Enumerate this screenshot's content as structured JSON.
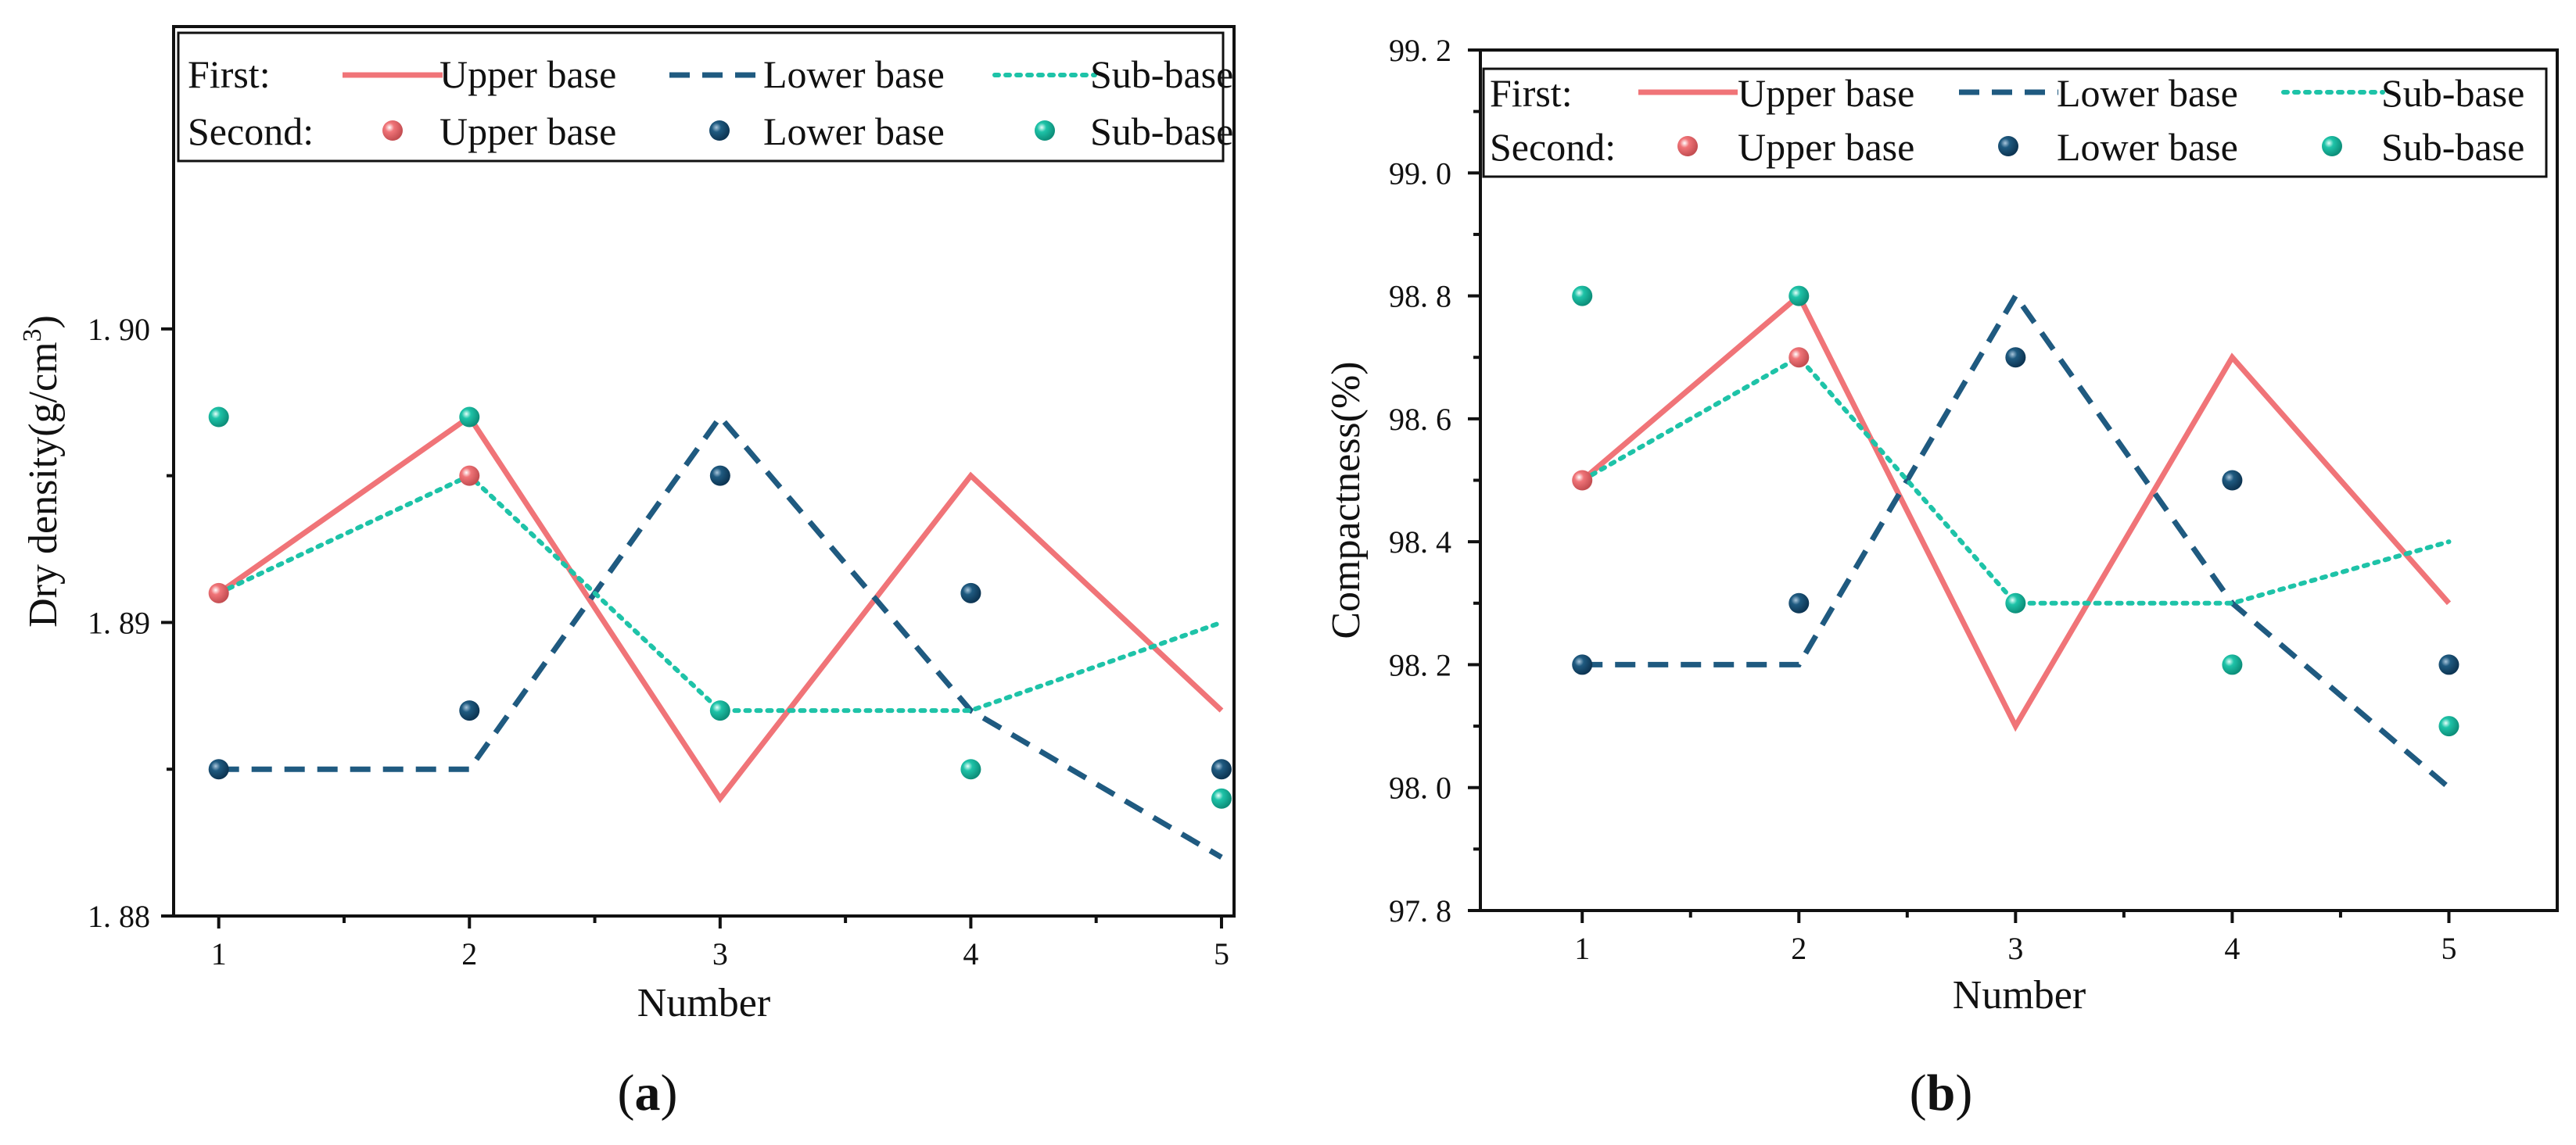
{
  "colors": {
    "upper": "#f07478",
    "lower": "#1f5a80",
    "sub": "#1ec3a8",
    "axis": "#111111"
  },
  "legend": {
    "first_label": "First:",
    "second_label": "Second:",
    "series_names": [
      "Upper base",
      "Lower base",
      "Sub-base"
    ]
  },
  "chart_data": [
    {
      "type": "line",
      "panel_label": "(a)",
      "panel_letter": "a",
      "xlabel": "Number",
      "ylabel": "Dry density(g/cm",
      "ylabel_sup": "3",
      "ylabel_close": ")",
      "x": [
        1,
        2,
        3,
        4,
        5
      ],
      "xlim": [
        0.82,
        5.05
      ],
      "ylim": [
        1.88,
        1.9103
      ],
      "xticks": [
        1,
        2,
        3,
        4,
        5
      ],
      "xtick_labels": [
        "1",
        "2",
        "3",
        "4",
        "5"
      ],
      "yticks": [
        1.88,
        1.89,
        1.9
      ],
      "ytick_labels": [
        "1. 88",
        "1. 89",
        "1. 90"
      ],
      "yminor": [
        1.885,
        1.895
      ],
      "series": [
        {
          "name": "Upper base",
          "key": "upper",
          "group": "First",
          "style": "solid",
          "values": [
            1.891,
            1.897,
            1.884,
            1.895,
            1.887
          ]
        },
        {
          "name": "Lower base",
          "key": "lower",
          "group": "First",
          "style": "dashed",
          "values": [
            1.885,
            1.885,
            1.897,
            1.887,
            1.882
          ]
        },
        {
          "name": "Sub-base",
          "key": "sub",
          "group": "First",
          "style": "dotted",
          "values": [
            1.891,
            1.895,
            1.887,
            1.887,
            1.89
          ]
        },
        {
          "name": "Upper base",
          "key": "upper",
          "group": "Second",
          "style": "marker",
          "values": [
            1.891,
            1.895,
            null,
            null,
            null
          ]
        },
        {
          "name": "Lower base",
          "key": "lower",
          "group": "Second",
          "style": "marker",
          "values": [
            1.885,
            1.887,
            1.895,
            1.891,
            1.885
          ]
        },
        {
          "name": "Sub-base",
          "key": "sub",
          "group": "Second",
          "style": "marker",
          "values": [
            1.897,
            1.897,
            1.887,
            1.885,
            1.884
          ]
        }
      ]
    },
    {
      "type": "line",
      "panel_label": "(b)",
      "panel_letter": "b",
      "xlabel": "Number",
      "ylabel": "Compactness(%)",
      "ylabel_sup": "",
      "ylabel_close": "",
      "x": [
        1,
        2,
        3,
        4,
        5
      ],
      "xlim": [
        0.53,
        5.5
      ],
      "ylim": [
        97.8,
        99.2
      ],
      "xticks": [
        1,
        2,
        3,
        4,
        5
      ],
      "xtick_labels": [
        "1",
        "2",
        "3",
        "4",
        "5"
      ],
      "yticks": [
        97.8,
        98.0,
        98.2,
        98.4,
        98.6,
        98.8,
        99.0,
        99.2
      ],
      "ytick_labels": [
        "97. 8",
        "98. 0",
        "98. 2",
        "98. 4",
        "98. 6",
        "98. 8",
        "99. 0",
        "99. 2"
      ],
      "yminor": [
        97.9,
        98.1,
        98.3,
        98.5,
        98.7,
        98.9,
        99.1
      ],
      "series": [
        {
          "name": "Upper base",
          "key": "upper",
          "group": "First",
          "style": "solid",
          "values": [
            98.5,
            98.8,
            98.1,
            98.7,
            98.3
          ]
        },
        {
          "name": "Lower base",
          "key": "lower",
          "group": "First",
          "style": "dashed",
          "values": [
            98.2,
            98.2,
            98.8,
            98.3,
            98.0
          ]
        },
        {
          "name": "Sub-base",
          "key": "sub",
          "group": "First",
          "style": "dotted",
          "values": [
            98.5,
            98.7,
            98.3,
            98.3,
            98.4
          ]
        },
        {
          "name": "Upper base",
          "key": "upper",
          "group": "Second",
          "style": "marker",
          "values": [
            98.5,
            98.7,
            null,
            null,
            null
          ]
        },
        {
          "name": "Lower base",
          "key": "lower",
          "group": "Second",
          "style": "marker",
          "values": [
            98.2,
            98.3,
            98.7,
            98.5,
            98.2
          ]
        },
        {
          "name": "Sub-base",
          "key": "sub",
          "group": "Second",
          "style": "marker",
          "values": [
            98.8,
            98.8,
            98.3,
            98.2,
            98.1
          ]
        }
      ]
    }
  ]
}
